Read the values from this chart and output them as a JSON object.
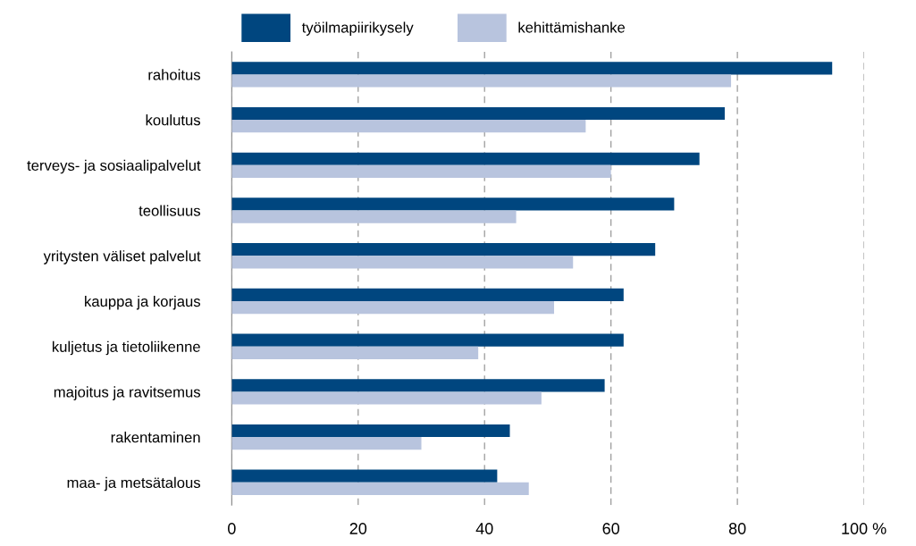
{
  "chart_data": {
    "type": "bar",
    "orientation": "horizontal",
    "categories": [
      "rahoitus",
      "koulutus",
      "terveys- ja sosiaalipalvelut",
      "teollisuus",
      "yritysten väliset palvelut",
      "kauppa ja korjaus",
      "kuljetus ja tietoliikenne",
      "majoitus ja ravitsemus",
      "rakentaminen",
      "maa- ja metsätalous"
    ],
    "series": [
      {
        "name": "työilmapiirikysely",
        "color": "#00467f",
        "values": [
          95,
          78,
          74,
          70,
          67,
          62,
          62,
          59,
          44,
          42
        ]
      },
      {
        "name": "kehittämishanke",
        "color": "#b8c4de",
        "values": [
          79,
          56,
          60,
          45,
          54,
          51,
          39,
          49,
          30,
          47
        ]
      }
    ],
    "xlim": [
      0,
      100
    ],
    "xticks": [
      0,
      20,
      40,
      60,
      80,
      {
        "value": 100,
        "label": "100 %"
      }
    ],
    "grid": "x",
    "legend": "top"
  }
}
